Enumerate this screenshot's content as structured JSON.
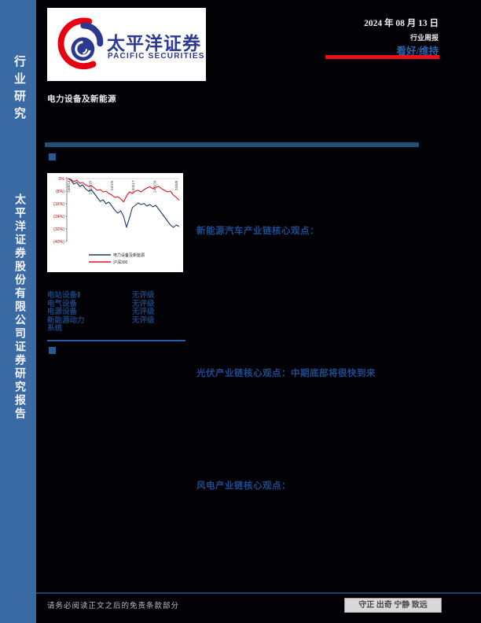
{
  "sidebar": {
    "top_label": "行业研究",
    "bottom_label": "太平洋证券股份有限公司证券研究报告",
    "bg_color": "#3a6aa3"
  },
  "logo": {
    "cn": "太平洋证券",
    "en": "PACIFIC SECURITIES",
    "brand_blue": "#2b3990",
    "brand_red": "#e60012"
  },
  "header": {
    "date": "2024 年 08 月 13 日",
    "report_type": "行业周报",
    "rating": "看好/维持",
    "industry": "电力设备及新能源",
    "accent_red": "#e8101d",
    "rating_blue": "#2e62ab"
  },
  "chart_data": {
    "type": "line",
    "title": "",
    "xlabel": "",
    "ylabel": "",
    "x_labels": [
      "23/8/14",
      "23/10/25",
      "24/1/5",
      "24/3/17",
      "24/5/28",
      "24/8/8"
    ],
    "y_ticks": [
      "0%",
      "(8%)",
      "(16%)",
      "(24%)",
      "(32%)",
      "(40%)"
    ],
    "ylim": [
      -40,
      0
    ],
    "grid": "zero-line-only",
    "legend_position": "bottom",
    "tick_color": "#c00000",
    "series": [
      {
        "name": "电力设备及新能源",
        "color": "#1f3864",
        "values": [
          0,
          -1,
          -3.5,
          -2.5,
          -5,
          -4,
          -6.5,
          -8,
          -7,
          -9.5,
          -12,
          -14.5,
          -13.5,
          -16,
          -15,
          -17.5,
          -20,
          -22,
          -20.5,
          -24,
          -31,
          -25,
          -18.5,
          -17,
          -15.5,
          -16.5,
          -15.8,
          -17.5,
          -16.5,
          -18,
          -17,
          -19.5,
          -22,
          -24.5,
          -27,
          -29.5,
          -31,
          -29.5,
          -30.5
        ]
      },
      {
        "name": "沪深300",
        "color": "#e1121f",
        "values": [
          0,
          -0.5,
          -2,
          -1,
          -3,
          -2.5,
          -4,
          -5,
          -4.5,
          -6,
          -7.5,
          -7,
          -8.5,
          -8,
          -9.5,
          -10.5,
          -12,
          -11.5,
          -13,
          -14.8,
          -11,
          -8.5,
          -9.5,
          -8,
          -7.5,
          -8.5,
          -7,
          -6,
          -5.2,
          -6.5,
          -5.5,
          -5,
          -6.5,
          -7.5,
          -8.5,
          -8,
          -10.5,
          -12,
          -13.8
        ]
      }
    ]
  },
  "sections": {
    "nev": "新能源汽车产业链核心观点：",
    "pv": "光伏产业链核心观点：中期底部将很快到来",
    "wind": "风电产业链核心观点："
  },
  "ratings": {
    "rows": [
      {
        "name": "电站设备Ⅱ",
        "rating": "无评级"
      },
      {
        "name": "电气设备",
        "rating": "无评级"
      },
      {
        "name": "电源设备",
        "rating": "无评级"
      },
      {
        "name": "新能源动力",
        "rating": "无评级"
      },
      {
        "name": "系统",
        "rating": ""
      }
    ]
  },
  "footer": {
    "disclaimer": "请务必阅读正文之后的免责条款部分",
    "motto": "守正 出奇 宁静 致远"
  }
}
